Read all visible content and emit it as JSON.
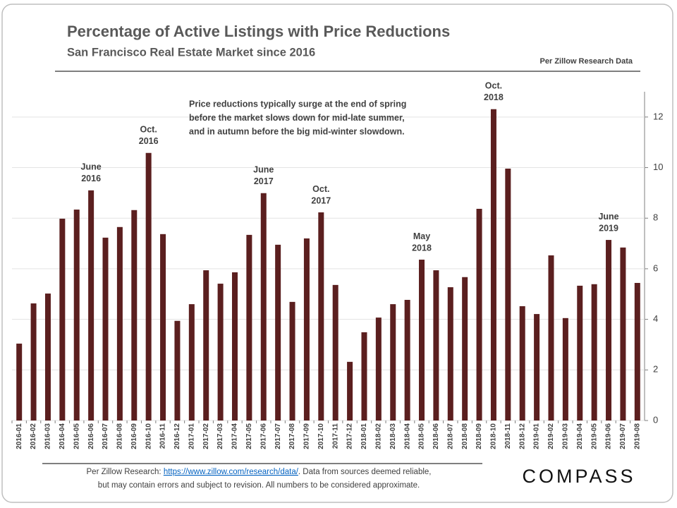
{
  "chart_data": {
    "type": "bar",
    "title": "Percentage of Active Listings with Price Reductions",
    "subtitle": "San Francisco Real Estate Market since 2016",
    "source": "Per Zillow Research Data",
    "note": [
      "Price reductions typically surge at the end of spring",
      "before the market slows down for mid-late summer,",
      "and in autumn before the big mid-winter slowdown."
    ],
    "categories": [
      "2016-01",
      "2016-02",
      "2016-03",
      "2016-04",
      "2016-05",
      "2016-06",
      "2016-07",
      "2016-08",
      "2016-09",
      "2016-10",
      "2016-11",
      "2016-12",
      "2017-01",
      "2017-02",
      "2017-03",
      "2017-04",
      "2017-05",
      "2017-06",
      "2017-07",
      "2017-08",
      "2017-09",
      "2017-10",
      "2017-11",
      "2017-12",
      "2018-01",
      "2018-02",
      "2018-03",
      "2018-04",
      "2018-05",
      "2018-06",
      "2018-07",
      "2018-08",
      "2018-09",
      "2018-10",
      "2018-11",
      "2018-12",
      "2019-01",
      "2019-02",
      "2019-03",
      "2019-04",
      "2019-05",
      "2019-06",
      "2019-07",
      "2019-08"
    ],
    "values": [
      3.04,
      4.63,
      5.02,
      7.98,
      8.34,
      9.1,
      7.23,
      7.65,
      8.32,
      10.58,
      7.37,
      3.94,
      4.6,
      5.94,
      5.41,
      5.86,
      7.34,
      8.99,
      6.95,
      4.69,
      7.2,
      8.23,
      5.36,
      2.32,
      3.49,
      4.07,
      4.6,
      4.77,
      6.36,
      5.94,
      5.27,
      5.67,
      8.37,
      12.31,
      9.96,
      4.52,
      4.21,
      6.53,
      4.05,
      5.33,
      5.39,
      7.14,
      6.84,
      5.44
    ],
    "color": "#5b1f1f",
    "ylim": [
      0,
      13
    ],
    "yticks": [
      0,
      2,
      4,
      6,
      8,
      10,
      12
    ],
    "annotations": [
      {
        "text": [
          "June",
          "2016"
        ],
        "at": "2016-06"
      },
      {
        "text": [
          "Oct.",
          "2016"
        ],
        "at": "2016-10"
      },
      {
        "text": [
          "June",
          "2017"
        ],
        "at": "2017-06"
      },
      {
        "text": [
          "Oct.",
          "2017"
        ],
        "at": "2017-10"
      },
      {
        "text": [
          "May",
          "2018"
        ],
        "at": "2018-05"
      },
      {
        "text": [
          "Oct.",
          "2018"
        ],
        "at": "2018-10"
      },
      {
        "text": [
          "June",
          "2019"
        ],
        "at": "2019-06"
      }
    ],
    "footer": {
      "prefix": "Per Zillow Research: ",
      "link": "https://www.zillow.com/research/data/",
      "suffix": ". Data from sources deemed reliable,",
      "line2": "but may contain errors and subject to revision.  All numbers to be considered approximate."
    },
    "logo": "COMPASS"
  }
}
